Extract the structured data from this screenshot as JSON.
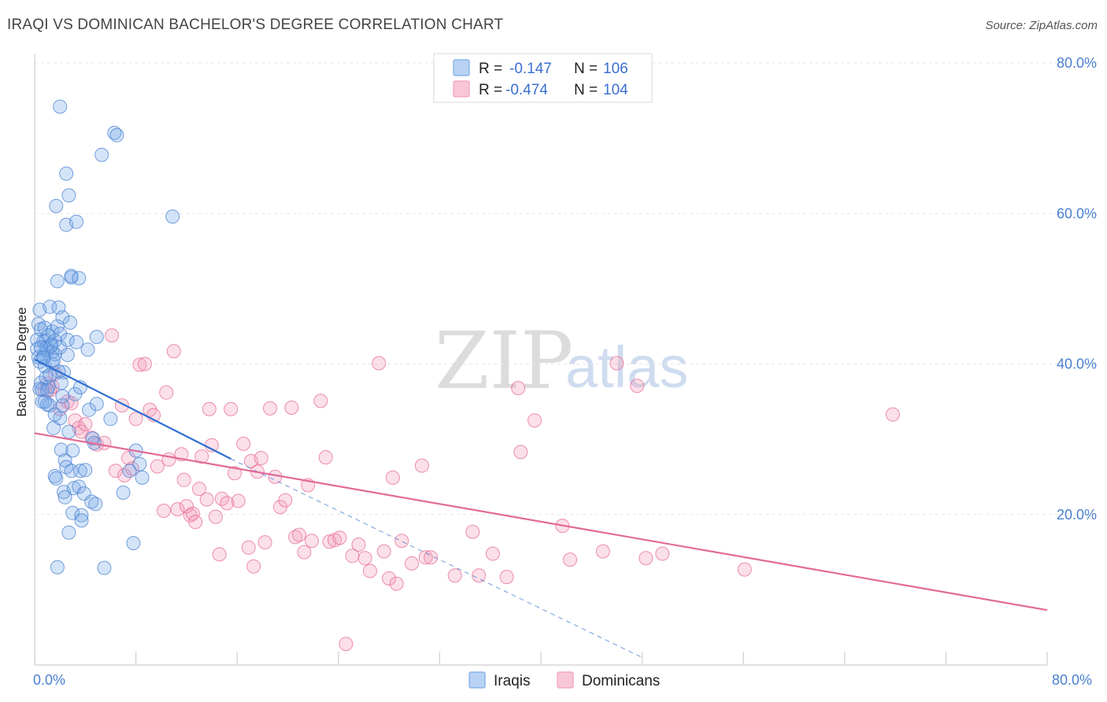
{
  "header": {
    "title": "IRAQI VS DOMINICAN BACHELOR'S DEGREE CORRELATION CHART",
    "source": "Source: ZipAtlas.com"
  },
  "watermark": {
    "zip": "ZIP",
    "atlas": "atlas"
  },
  "legend": {
    "rows": [
      {
        "r_label": "R =",
        "r_value": "-0.147",
        "n_label": "N =",
        "n_value": "106",
        "color": "#7aaae8"
      },
      {
        "r_label": "R =",
        "r_value": "-0.474",
        "n_label": "N =",
        "n_value": "104",
        "color": "#f2a0bb"
      }
    ]
  },
  "bottom_legend": {
    "series1": "Iraqis",
    "series2": "Dominicans"
  },
  "chart_data": {
    "type": "scatter",
    "title": "IRAQI VS DOMINICAN BACHELOR'S DEGREE CORRELATION CHART",
    "xlabel": "",
    "ylabel": "Bachelor's Degree",
    "xlim": [
      0,
      80
    ],
    "ylim": [
      0,
      80
    ],
    "x_tick_labels": [
      "0.0%",
      "80.0%"
    ],
    "y_ticks": [
      20,
      40,
      60,
      80
    ],
    "y_tick_labels": [
      "20.0%",
      "40.0%",
      "60.0%",
      "80.0%"
    ],
    "series": [
      {
        "name": "Iraqis",
        "color": "#7aaae8",
        "stroke": "#4a80d0",
        "trend": {
          "x": [
            0,
            15.5
          ],
          "y": [
            40.6,
            27.4
          ],
          "dashed_to": [
            48,
            1
          ]
        },
        "points": [
          [
            0.4,
            47.2
          ],
          [
            0.3,
            45.3
          ],
          [
            0.2,
            43.2
          ],
          [
            0.2,
            42.0
          ],
          [
            0.3,
            40.9
          ],
          [
            0.4,
            40.3
          ],
          [
            0.5,
            37.5
          ],
          [
            0.4,
            36.7
          ],
          [
            0.6,
            35.0
          ],
          [
            0.5,
            44.6
          ],
          [
            0.7,
            43.0
          ],
          [
            0.7,
            41.0
          ],
          [
            0.8,
            44.8
          ],
          [
            0.9,
            43.1
          ],
          [
            0.9,
            42.1
          ],
          [
            1.0,
            41.8
          ],
          [
            0.8,
            39.7
          ],
          [
            1.1,
            37.0
          ],
          [
            1.0,
            34.6
          ],
          [
            1.2,
            34.5
          ],
          [
            1.2,
            47.6
          ],
          [
            1.4,
            44.3
          ],
          [
            1.3,
            42.6
          ],
          [
            1.4,
            41.6
          ],
          [
            1.4,
            40.0
          ],
          [
            1.6,
            41.3
          ],
          [
            1.6,
            43.1
          ],
          [
            1.5,
            31.5
          ],
          [
            1.6,
            25.1
          ],
          [
            1.7,
            24.8
          ],
          [
            1.8,
            13.0
          ],
          [
            1.8,
            45.0
          ],
          [
            1.8,
            51.0
          ],
          [
            1.7,
            61.0
          ],
          [
            1.9,
            47.5
          ],
          [
            2.0,
            44.0
          ],
          [
            2.0,
            42.2
          ],
          [
            2.0,
            32.8
          ],
          [
            2.1,
            28.6
          ],
          [
            2.0,
            74.2
          ],
          [
            2.2,
            46.2
          ],
          [
            2.3,
            38.9
          ],
          [
            2.2,
            35.7
          ],
          [
            2.2,
            34.5
          ],
          [
            2.3,
            23.0
          ],
          [
            2.4,
            27.2
          ],
          [
            2.4,
            22.3
          ],
          [
            2.5,
            26.3
          ],
          [
            2.5,
            58.5
          ],
          [
            2.5,
            65.3
          ],
          [
            2.6,
            43.2
          ],
          [
            2.6,
            41.2
          ],
          [
            2.7,
            31.0
          ],
          [
            2.7,
            62.4
          ],
          [
            2.7,
            17.6
          ],
          [
            2.8,
            45.5
          ],
          [
            2.9,
            51.5
          ],
          [
            2.9,
            51.7
          ],
          [
            2.9,
            25.8
          ],
          [
            3.0,
            20.2
          ],
          [
            3.0,
            28.5
          ],
          [
            3.1,
            23.5
          ],
          [
            3.2,
            36.0
          ],
          [
            3.3,
            42.9
          ],
          [
            3.3,
            58.9
          ],
          [
            3.5,
            51.4
          ],
          [
            3.5,
            23.7
          ],
          [
            3.6,
            36.9
          ],
          [
            3.6,
            25.8
          ],
          [
            3.7,
            19.9
          ],
          [
            3.7,
            19.2
          ],
          [
            3.9,
            22.8
          ],
          [
            4.0,
            25.9
          ],
          [
            4.2,
            41.9
          ],
          [
            4.3,
            33.9
          ],
          [
            4.5,
            21.7
          ],
          [
            4.6,
            30.1
          ],
          [
            4.7,
            29.5
          ],
          [
            4.8,
            21.4
          ],
          [
            4.9,
            43.6
          ],
          [
            4.9,
            34.7
          ],
          [
            5.3,
            67.8
          ],
          [
            5.5,
            12.9
          ],
          [
            6.0,
            32.7
          ],
          [
            6.3,
            70.7
          ],
          [
            6.5,
            70.4
          ],
          [
            7.0,
            22.9
          ],
          [
            7.5,
            25.8
          ],
          [
            7.8,
            16.2
          ],
          [
            8.0,
            28.5
          ],
          [
            8.3,
            26.7
          ],
          [
            8.5,
            24.9
          ],
          [
            10.9,
            59.6
          ],
          [
            0.6,
            36.6
          ],
          [
            0.9,
            38.2
          ],
          [
            1.1,
            43.8
          ],
          [
            1.3,
            42.4
          ],
          [
            1.5,
            40.5
          ],
          [
            0.5,
            42.2
          ],
          [
            0.7,
            40.8
          ],
          [
            1.0,
            36.5
          ],
          [
            1.9,
            39.0
          ],
          [
            2.1,
            37.5
          ],
          [
            1.2,
            38.5
          ],
          [
            0.8,
            35.0
          ],
          [
            1.6,
            33.3
          ]
        ]
      },
      {
        "name": "Dominicans",
        "color": "#f2a0bb",
        "stroke": "#e86a95",
        "trend": {
          "x": [
            0,
            80
          ],
          "y": [
            30.8,
            7.3
          ]
        },
        "points": [
          [
            0.8,
            36.5
          ],
          [
            1.0,
            37.4
          ],
          [
            1.2,
            36.5
          ],
          [
            1.4,
            37.0
          ],
          [
            1.6,
            38.7
          ],
          [
            2.0,
            34.0
          ],
          [
            2.6,
            35.0
          ],
          [
            2.9,
            34.8
          ],
          [
            3.2,
            32.5
          ],
          [
            3.5,
            31.5
          ],
          [
            3.7,
            31.0
          ],
          [
            4.0,
            32.0
          ],
          [
            4.5,
            30.2
          ],
          [
            4.9,
            29.3
          ],
          [
            5.5,
            29.5
          ],
          [
            6.1,
            43.8
          ],
          [
            6.4,
            25.8
          ],
          [
            6.9,
            34.5
          ],
          [
            7.1,
            25.2
          ],
          [
            7.4,
            27.5
          ],
          [
            7.7,
            26.1
          ],
          [
            8.0,
            32.7
          ],
          [
            8.3,
            39.9
          ],
          [
            8.7,
            40.0
          ],
          [
            9.1,
            33.9
          ],
          [
            9.4,
            33.2
          ],
          [
            9.7,
            26.4
          ],
          [
            10.2,
            20.5
          ],
          [
            10.4,
            36.2
          ],
          [
            10.6,
            27.3
          ],
          [
            11.0,
            41.7
          ],
          [
            11.3,
            20.7
          ],
          [
            11.6,
            28.0
          ],
          [
            11.8,
            24.6
          ],
          [
            12.0,
            21.1
          ],
          [
            12.3,
            19.9
          ],
          [
            12.5,
            20.1
          ],
          [
            12.7,
            19.0
          ],
          [
            13.0,
            23.4
          ],
          [
            13.2,
            27.7
          ],
          [
            13.6,
            22.0
          ],
          [
            13.8,
            34.0
          ],
          [
            14.0,
            29.2
          ],
          [
            14.3,
            19.7
          ],
          [
            14.6,
            14.7
          ],
          [
            14.8,
            22.1
          ],
          [
            15.2,
            21.5
          ],
          [
            15.5,
            34.0
          ],
          [
            15.8,
            25.5
          ],
          [
            16.1,
            21.8
          ],
          [
            16.5,
            29.4
          ],
          [
            16.9,
            15.6
          ],
          [
            17.1,
            27.1
          ],
          [
            17.3,
            13.1
          ],
          [
            17.6,
            25.7
          ],
          [
            17.9,
            27.5
          ],
          [
            18.2,
            16.3
          ],
          [
            18.6,
            34.1
          ],
          [
            19.0,
            25.0
          ],
          [
            19.4,
            21.0
          ],
          [
            19.8,
            21.9
          ],
          [
            20.3,
            34.2
          ],
          [
            20.6,
            17.0
          ],
          [
            20.9,
            17.3
          ],
          [
            21.3,
            15.0
          ],
          [
            21.6,
            23.9
          ],
          [
            21.9,
            16.5
          ],
          [
            22.6,
            35.1
          ],
          [
            23.0,
            27.6
          ],
          [
            23.3,
            16.4
          ],
          [
            23.7,
            16.6
          ],
          [
            24.1,
            16.9
          ],
          [
            24.6,
            2.8
          ],
          [
            25.1,
            14.5
          ],
          [
            25.6,
            16.0
          ],
          [
            26.1,
            14.2
          ],
          [
            26.5,
            12.5
          ],
          [
            27.2,
            40.1
          ],
          [
            27.6,
            15.1
          ],
          [
            28.0,
            11.5
          ],
          [
            28.3,
            24.9
          ],
          [
            28.6,
            10.8
          ],
          [
            29.0,
            16.5
          ],
          [
            29.8,
            13.5
          ],
          [
            30.6,
            26.5
          ],
          [
            30.9,
            14.3
          ],
          [
            31.3,
            14.3
          ],
          [
            33.2,
            11.9
          ],
          [
            34.6,
            17.7
          ],
          [
            35.1,
            11.9
          ],
          [
            36.2,
            14.8
          ],
          [
            37.3,
            11.7
          ],
          [
            38.2,
            36.8
          ],
          [
            38.4,
            28.3
          ],
          [
            39.5,
            32.5
          ],
          [
            41.7,
            18.5
          ],
          [
            42.3,
            14.0
          ],
          [
            44.9,
            15.1
          ],
          [
            46.0,
            40.1
          ],
          [
            47.6,
            37.1
          ],
          [
            48.3,
            14.2
          ],
          [
            49.6,
            14.8
          ],
          [
            56.1,
            12.7
          ],
          [
            67.8,
            33.3
          ]
        ]
      }
    ]
  }
}
